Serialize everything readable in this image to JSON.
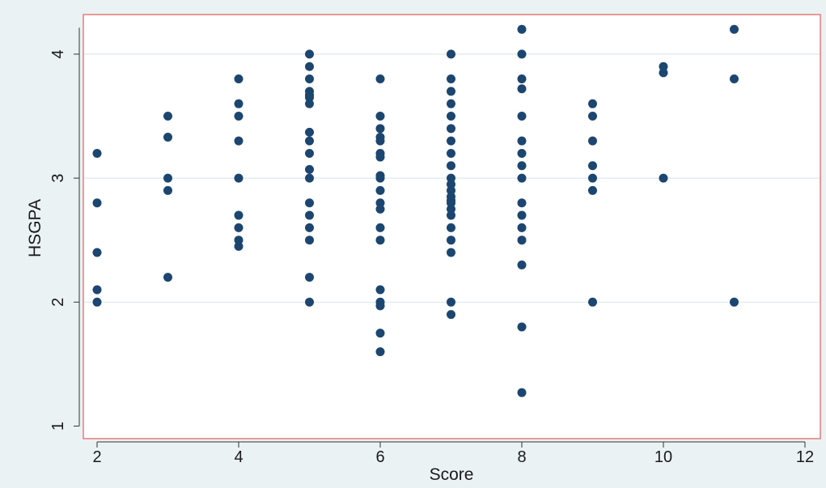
{
  "chart_data": {
    "type": "scatter",
    "title": "",
    "xlabel": "Score",
    "ylabel": "HSGPA",
    "xlim": [
      2,
      12
    ],
    "ylim": [
      1,
      4.2
    ],
    "x_ticks": [
      "2",
      "4",
      "6",
      "8",
      "10",
      "12"
    ],
    "y_ticks": [
      "1",
      "2",
      "3",
      "4"
    ],
    "grid": true,
    "legend": "none",
    "colors": {
      "marker": "#1c4670",
      "plot_border": "#e87a7a",
      "plot_background": "#ffffff",
      "outer_background": "#eaf2f3",
      "gridline": "#dde9ec",
      "axis": "#333333"
    },
    "points": [
      [
        2,
        3.2
      ],
      [
        2,
        2.8
      ],
      [
        2,
        2.4
      ],
      [
        2,
        2.1
      ],
      [
        2,
        2.0
      ],
      [
        3,
        3.5
      ],
      [
        3,
        3.33
      ],
      [
        3,
        3.0
      ],
      [
        3,
        2.9
      ],
      [
        3,
        2.2
      ],
      [
        4,
        3.8
      ],
      [
        4,
        3.6
      ],
      [
        4,
        3.5
      ],
      [
        4,
        3.3
      ],
      [
        4,
        3.0
      ],
      [
        4,
        2.7
      ],
      [
        4,
        2.6
      ],
      [
        4,
        2.5
      ],
      [
        4,
        2.45
      ],
      [
        5,
        4.0
      ],
      [
        5,
        3.9
      ],
      [
        5,
        3.8
      ],
      [
        5,
        3.7
      ],
      [
        5,
        3.67
      ],
      [
        5,
        3.65
      ],
      [
        5,
        3.6
      ],
      [
        5,
        3.37
      ],
      [
        5,
        3.3
      ],
      [
        5,
        3.2
      ],
      [
        5,
        3.07
      ],
      [
        5,
        3.0
      ],
      [
        5,
        2.8
      ],
      [
        5,
        2.7
      ],
      [
        5,
        2.6
      ],
      [
        5,
        2.5
      ],
      [
        5,
        2.2
      ],
      [
        5,
        2.0
      ],
      [
        6,
        3.8
      ],
      [
        6,
        3.5
      ],
      [
        6,
        3.4
      ],
      [
        6,
        3.33
      ],
      [
        6,
        3.3
      ],
      [
        6,
        3.2
      ],
      [
        6,
        3.17
      ],
      [
        6,
        3.02
      ],
      [
        6,
        3.0
      ],
      [
        6,
        2.9
      ],
      [
        6,
        2.8
      ],
      [
        6,
        2.75
      ],
      [
        6,
        2.6
      ],
      [
        6,
        2.5
      ],
      [
        6,
        2.1
      ],
      [
        6,
        2.0
      ],
      [
        6,
        1.97
      ],
      [
        6,
        1.75
      ],
      [
        6,
        1.6
      ],
      [
        7,
        4.0
      ],
      [
        7,
        3.8
      ],
      [
        7,
        3.7
      ],
      [
        7,
        3.6
      ],
      [
        7,
        3.5
      ],
      [
        7,
        3.4
      ],
      [
        7,
        3.3
      ],
      [
        7,
        3.2
      ],
      [
        7,
        3.1
      ],
      [
        7,
        3.0
      ],
      [
        7,
        2.95
      ],
      [
        7,
        2.9
      ],
      [
        7,
        2.85
      ],
      [
        7,
        2.82
      ],
      [
        7,
        2.8
      ],
      [
        7,
        2.75
      ],
      [
        7,
        2.7
      ],
      [
        7,
        2.6
      ],
      [
        7,
        2.5
      ],
      [
        7,
        2.4
      ],
      [
        7,
        2.0
      ],
      [
        7,
        1.9
      ],
      [
        8,
        4.2
      ],
      [
        8,
        4.0
      ],
      [
        8,
        3.8
      ],
      [
        8,
        3.72
      ],
      [
        8,
        3.5
      ],
      [
        8,
        3.3
      ],
      [
        8,
        3.2
      ],
      [
        8,
        3.1
      ],
      [
        8,
        3.0
      ],
      [
        8,
        2.8
      ],
      [
        8,
        2.7
      ],
      [
        8,
        2.6
      ],
      [
        8,
        2.5
      ],
      [
        8,
        2.3
      ],
      [
        8,
        1.8
      ],
      [
        8,
        1.27
      ],
      [
        9,
        3.6
      ],
      [
        9,
        3.5
      ],
      [
        9,
        3.3
      ],
      [
        9,
        3.1
      ],
      [
        9,
        3.0
      ],
      [
        9,
        2.9
      ],
      [
        9,
        2.0
      ],
      [
        10,
        3.9
      ],
      [
        10,
        3.85
      ],
      [
        10,
        3.0
      ],
      [
        11,
        4.2
      ],
      [
        11,
        3.8
      ],
      [
        11,
        2.0
      ]
    ]
  }
}
